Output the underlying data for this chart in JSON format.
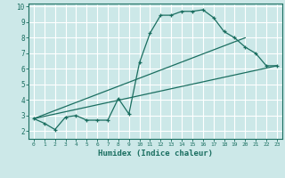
{
  "xlabel": "Humidex (Indice chaleur)",
  "bg_color": "#cce8e8",
  "grid_color": "#ffffff",
  "line_color": "#1a6e60",
  "xlim": [
    -0.5,
    23.5
  ],
  "ylim": [
    1.5,
    10.2
  ],
  "yticks": [
    2,
    3,
    4,
    5,
    6,
    7,
    8,
    9,
    10
  ],
  "xticks": [
    0,
    1,
    2,
    3,
    4,
    5,
    6,
    7,
    8,
    9,
    10,
    11,
    12,
    13,
    14,
    15,
    16,
    17,
    18,
    19,
    20,
    21,
    22,
    23
  ],
  "line1_x": [
    0,
    1,
    2,
    3,
    4,
    5,
    6,
    7,
    8,
    9,
    10,
    11,
    12,
    13,
    14,
    15,
    16,
    17,
    18,
    19,
    20,
    21,
    22,
    23
  ],
  "line1_y": [
    2.8,
    2.5,
    2.1,
    2.9,
    3.0,
    2.7,
    2.7,
    2.7,
    4.1,
    3.1,
    6.4,
    8.3,
    9.45,
    9.45,
    9.7,
    9.7,
    9.8,
    9.3,
    8.4,
    8.0,
    7.4,
    7.0,
    6.2,
    6.2
  ],
  "line2_x": [
    0,
    23
  ],
  "line2_y": [
    2.8,
    6.2
  ],
  "line3_x": [
    0,
    20
  ],
  "line3_y": [
    2.8,
    8.0
  ]
}
